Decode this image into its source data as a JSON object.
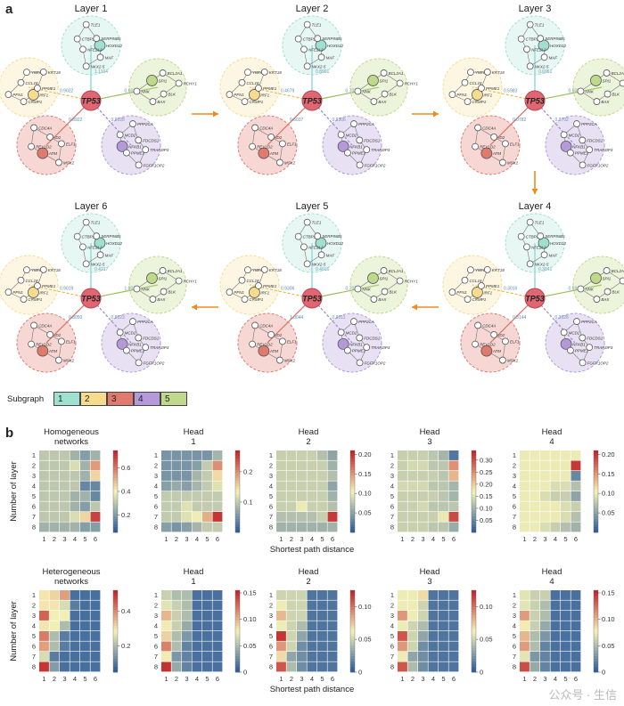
{
  "panel_a": {
    "letter": "a",
    "layers": [
      {
        "title": "Layer 1",
        "weights": [
          "1.1104",
          "0.9022",
          "0.8922",
          "0.9028",
          "0.6016"
        ]
      },
      {
        "title": "Layer 2",
        "weights": [
          "0.8901",
          "0.4679",
          "0.6037",
          "0.9306",
          "0.7021"
        ]
      },
      {
        "title": "Layer 3",
        "weights": [
          "0.6951",
          "0.5983",
          "0.0782",
          "0.3702",
          "0.5002"
        ]
      },
      {
        "title": "Layer 4",
        "weights": [
          "0.3841",
          "0.3016",
          "0.3144",
          "0.3026",
          "0.5917"
        ]
      },
      {
        "title": "Layer 5",
        "weights": [
          "0.4016",
          "0.9306",
          "1.0044",
          "0.9011",
          "0.7037"
        ]
      },
      {
        "title": "Layer 6",
        "weights": [
          "0.4217",
          "0.9019",
          "0.8050",
          "0.9023",
          "1.0014"
        ]
      }
    ],
    "hub": "TP53",
    "genes": {
      "s1": [
        "HOXD12",
        "MAF",
        "NKX2-5",
        "NFE2L2",
        "CTBP2",
        "TLE1",
        "SERPINB5"
      ],
      "s2": [
        "IRF1",
        "CRMP1",
        "PFN1",
        "CCL18",
        "YWHAQ",
        "KRT18",
        "PPME1"
      ],
      "s3": [
        "ATM",
        "REV1D2",
        "CDC4A",
        "ID2",
        "ELF1",
        "MSX2"
      ],
      "s4": [
        "NFKB1",
        "MCD2",
        "PPP2CA",
        "FDCDS1",
        "TRAF3IP3",
        "FGFR1OP2",
        "PPME1"
      ],
      "s5": [
        "SPI1",
        "BCL2A1",
        "RCHY1",
        "BLK",
        "BAX",
        "NNK"
      ]
    },
    "subgraph_legend": {
      "label": "Subgraph",
      "items": [
        "1",
        "2",
        "3",
        "4",
        "5"
      ],
      "colors": [
        "#9fe0d0",
        "#f7dc8f",
        "#e07a6f",
        "#b49ad8",
        "#bfd98a"
      ]
    }
  },
  "panel_b": {
    "letter": "b",
    "ylabel": "Number of layer",
    "xlabel": "Shortest path distance",
    "colors": {
      "low": "#2f5d9a",
      "mid": "#f6f2b6",
      "high": "#c0262b"
    },
    "charts": [
      {
        "title": "Homogeneous networks",
        "cbar": [
          "0.6",
          "0.4",
          "0.2"
        ],
        "cbar_vals": [
          0.6,
          0.4,
          0.2
        ],
        "vmin": 0.05,
        "vmax": 0.75
      },
      {
        "title": "Head 1",
        "cbar": [
          "0.2",
          "0.1"
        ],
        "cbar_vals": [
          0.2,
          0.1
        ],
        "vmin": 0.0,
        "vmax": 0.27
      },
      {
        "title": "Head 2",
        "cbar": [
          "0.20",
          "0.15",
          "0.10",
          "0.05"
        ],
        "cbar_vals": [
          0.2,
          0.15,
          0.1,
          0.05
        ],
        "vmin": 0.0,
        "vmax": 0.21
      },
      {
        "title": "Head 3",
        "cbar": [
          "0.30",
          "0.25",
          "0.20",
          "0.15",
          "0.10",
          "0.05"
        ],
        "cbar_vals": [
          0.3,
          0.25,
          0.2,
          0.15,
          0.1,
          0.05
        ],
        "vmin": 0.0,
        "vmax": 0.34
      },
      {
        "title": "Head 4",
        "cbar": [
          "0.20",
          "0.15",
          "0.10",
          "0.05"
        ],
        "cbar_vals": [
          0.2,
          0.15,
          0.1,
          0.05
        ],
        "vmin": 0.0,
        "vmax": 0.21
      },
      {
        "title": "Heterogeneous networks",
        "cbar": [
          "0.4",
          "0.2"
        ],
        "cbar_vals": [
          0.4,
          0.2
        ],
        "vmin": 0.05,
        "vmax": 0.52
      },
      {
        "title": "Head 1",
        "cbar": [
          "0.15",
          "0.10",
          "0.05",
          "0"
        ],
        "cbar_vals": [
          0.15,
          0.1,
          0.05,
          0
        ],
        "vmin": 0.0,
        "vmax": 0.155
      },
      {
        "title": "Head 2",
        "cbar": [
          "0.10",
          "0.05",
          "0"
        ],
        "cbar_vals": [
          0.1,
          0.05,
          0
        ],
        "vmin": 0.0,
        "vmax": 0.125
      },
      {
        "title": "Head 3",
        "cbar": [
          "0.10",
          "0.05",
          "0"
        ],
        "cbar_vals": [
          0.1,
          0.05,
          0
        ],
        "vmin": 0.0,
        "vmax": 0.125
      },
      {
        "title": "Head 4",
        "cbar": [
          "0.15",
          "0.10",
          "0.05",
          "0"
        ],
        "cbar_vals": [
          0.15,
          0.1,
          0.05,
          0
        ],
        "vmin": 0.0,
        "vmax": 0.155
      }
    ]
  },
  "chart_data": [
    {
      "type": "heatmap",
      "title": "Homogeneous networks",
      "x": [
        1,
        2,
        3,
        4,
        5,
        6
      ],
      "y": [
        1,
        2,
        3,
        4,
        5,
        6,
        7,
        8
      ],
      "values": [
        [
          0.3,
          0.3,
          0.3,
          0.25,
          0.2,
          0.25
        ],
        [
          0.3,
          0.3,
          0.3,
          0.35,
          0.25,
          0.55
        ],
        [
          0.3,
          0.3,
          0.3,
          0.3,
          0.25,
          0.45
        ],
        [
          0.3,
          0.3,
          0.3,
          0.3,
          0.15,
          0.15
        ],
        [
          0.3,
          0.3,
          0.3,
          0.25,
          0.25,
          0.15
        ],
        [
          0.3,
          0.3,
          0.3,
          0.25,
          0.2,
          0.3
        ],
        [
          0.3,
          0.3,
          0.3,
          0.35,
          0.45,
          0.7
        ],
        [
          0.25,
          0.25,
          0.25,
          0.25,
          0.2,
          0.2
        ]
      ]
    },
    {
      "type": "heatmap",
      "title": "Head 1",
      "x": [
        1,
        2,
        3,
        4,
        5,
        6
      ],
      "y": [
        1,
        2,
        3,
        4,
        5,
        6,
        7,
        8
      ],
      "values": [
        [
          0.05,
          0.05,
          0.05,
          0.05,
          0.05,
          0.08
        ],
        [
          0.05,
          0.05,
          0.05,
          0.06,
          0.1,
          0.2
        ],
        [
          0.05,
          0.05,
          0.05,
          0.08,
          0.1,
          0.15
        ],
        [
          0.06,
          0.07,
          0.06,
          0.08,
          0.1,
          0.12
        ],
        [
          0.1,
          0.1,
          0.1,
          0.1,
          0.1,
          0.1
        ],
        [
          0.1,
          0.1,
          0.12,
          0.1,
          0.1,
          0.1
        ],
        [
          0.1,
          0.1,
          0.12,
          0.13,
          0.18,
          0.26
        ],
        [
          0.06,
          0.05,
          0.06,
          0.08,
          0.1,
          0.1
        ]
      ]
    },
    {
      "type": "heatmap",
      "title": "Head 2",
      "x": [
        1,
        2,
        3,
        4,
        5,
        6
      ],
      "y": [
        1,
        2,
        3,
        4,
        5,
        6,
        7,
        8
      ],
      "values": [
        [
          0.08,
          0.08,
          0.08,
          0.08,
          0.07,
          0.05
        ],
        [
          0.08,
          0.08,
          0.08,
          0.08,
          0.08,
          0.06
        ],
        [
          0.08,
          0.08,
          0.08,
          0.08,
          0.08,
          0.07
        ],
        [
          0.08,
          0.08,
          0.08,
          0.08,
          0.08,
          0.05
        ],
        [
          0.08,
          0.08,
          0.08,
          0.08,
          0.08,
          0.06
        ],
        [
          0.08,
          0.08,
          0.1,
          0.08,
          0.08,
          0.07
        ],
        [
          0.07,
          0.07,
          0.07,
          0.07,
          0.08,
          0.2
        ],
        [
          0.06,
          0.06,
          0.06,
          0.06,
          0.06,
          0.06
        ]
      ]
    },
    {
      "type": "heatmap",
      "title": "Head 3",
      "x": [
        1,
        2,
        3,
        4,
        5,
        6
      ],
      "y": [
        1,
        2,
        3,
        4,
        5,
        6,
        7,
        8
      ],
      "values": [
        [
          0.13,
          0.13,
          0.13,
          0.12,
          0.1,
          0.03
        ],
        [
          0.13,
          0.14,
          0.14,
          0.12,
          0.12,
          0.25
        ],
        [
          0.13,
          0.13,
          0.13,
          0.13,
          0.12,
          0.22
        ],
        [
          0.14,
          0.14,
          0.14,
          0.12,
          0.12,
          0.1
        ],
        [
          0.13,
          0.13,
          0.13,
          0.13,
          0.12,
          0.1
        ],
        [
          0.13,
          0.13,
          0.14,
          0.12,
          0.12,
          0.12
        ],
        [
          0.13,
          0.13,
          0.13,
          0.13,
          0.16,
          0.31
        ],
        [
          0.13,
          0.13,
          0.13,
          0.12,
          0.12,
          0.09
        ]
      ]
    },
    {
      "type": "heatmap",
      "title": "Head 4",
      "x": [
        1,
        2,
        3,
        4,
        5,
        6
      ],
      "y": [
        1,
        2,
        3,
        4,
        5,
        6,
        7,
        8
      ],
      "values": [
        [
          0.1,
          0.1,
          0.1,
          0.1,
          0.1,
          0.1
        ],
        [
          0.1,
          0.1,
          0.1,
          0.1,
          0.1,
          0.2
        ],
        [
          0.1,
          0.1,
          0.1,
          0.1,
          0.1,
          0.03
        ],
        [
          0.1,
          0.1,
          0.1,
          0.09,
          0.09,
          0.07
        ],
        [
          0.1,
          0.1,
          0.09,
          0.08,
          0.08,
          0.05
        ],
        [
          0.1,
          0.1,
          0.1,
          0.1,
          0.09,
          0.08
        ],
        [
          0.1,
          0.1,
          0.1,
          0.1,
          0.09,
          0.07
        ],
        [
          0.1,
          0.1,
          0.09,
          0.08,
          0.07,
          0.06
        ]
      ]
    },
    {
      "type": "heatmap",
      "title": "Heterogeneous networks",
      "x": [
        1,
        2,
        3,
        4,
        5,
        6
      ],
      "y": [
        1,
        2,
        3,
        4,
        5,
        6,
        7,
        8
      ],
      "values": [
        [
          0.3,
          0.32,
          0.38,
          0.08,
          0.08,
          0.08
        ],
        [
          0.3,
          0.3,
          0.25,
          0.1,
          0.08,
          0.08
        ],
        [
          0.45,
          0.28,
          0.28,
          0.08,
          0.08,
          0.08
        ],
        [
          0.3,
          0.28,
          0.2,
          0.08,
          0.08,
          0.08
        ],
        [
          0.42,
          0.2,
          0.1,
          0.08,
          0.08,
          0.08
        ],
        [
          0.38,
          0.2,
          0.1,
          0.08,
          0.08,
          0.08
        ],
        [
          0.25,
          0.1,
          0.08,
          0.08,
          0.08,
          0.08
        ],
        [
          0.5,
          0.15,
          0.08,
          0.08,
          0.08,
          0.08
        ]
      ]
    },
    {
      "type": "heatmap",
      "title": "Head 1",
      "x": [
        1,
        2,
        3,
        4,
        5,
        6
      ],
      "y": [
        1,
        2,
        3,
        4,
        5,
        6,
        7,
        8
      ],
      "values": [
        [
          0.06,
          0.05,
          0.05,
          0.01,
          0.01,
          0.01
        ],
        [
          0.07,
          0.06,
          0.05,
          0.01,
          0.01,
          0.01
        ],
        [
          0.1,
          0.06,
          0.05,
          0.01,
          0.01,
          0.01
        ],
        [
          0.08,
          0.06,
          0.04,
          0.01,
          0.01,
          0.01
        ],
        [
          0.09,
          0.05,
          0.03,
          0.01,
          0.01,
          0.01
        ],
        [
          0.12,
          0.05,
          0.02,
          0.01,
          0.01,
          0.01
        ],
        [
          0.08,
          0.03,
          0.02,
          0.01,
          0.01,
          0.01
        ],
        [
          0.15,
          0.04,
          0.02,
          0.01,
          0.01,
          0.01
        ]
      ]
    },
    {
      "type": "heatmap",
      "title": "Head 2",
      "x": [
        1,
        2,
        3,
        4,
        5,
        6
      ],
      "y": [
        1,
        2,
        3,
        4,
        5,
        6,
        7,
        8
      ],
      "values": [
        [
          0.05,
          0.05,
          0.05,
          0.01,
          0.01,
          0.01
        ],
        [
          0.06,
          0.05,
          0.05,
          0.01,
          0.01,
          0.01
        ],
        [
          0.08,
          0.05,
          0.05,
          0.01,
          0.01,
          0.01
        ],
        [
          0.06,
          0.05,
          0.04,
          0.01,
          0.01,
          0.01
        ],
        [
          0.12,
          0.05,
          0.03,
          0.01,
          0.01,
          0.01
        ],
        [
          0.09,
          0.05,
          0.02,
          0.01,
          0.01,
          0.01
        ],
        [
          0.07,
          0.03,
          0.02,
          0.01,
          0.01,
          0.01
        ],
        [
          0.11,
          0.04,
          0.02,
          0.01,
          0.01,
          0.01
        ]
      ]
    },
    {
      "type": "heatmap",
      "title": "Head 3",
      "x": [
        1,
        2,
        3,
        4,
        5,
        6
      ],
      "y": [
        1,
        2,
        3,
        4,
        5,
        6,
        7,
        8
      ],
      "values": [
        [
          0.06,
          0.06,
          0.07,
          0.01,
          0.01,
          0.01
        ],
        [
          0.06,
          0.06,
          0.05,
          0.01,
          0.01,
          0.01
        ],
        [
          0.09,
          0.06,
          0.05,
          0.01,
          0.01,
          0.01
        ],
        [
          0.06,
          0.05,
          0.04,
          0.01,
          0.01,
          0.01
        ],
        [
          0.11,
          0.05,
          0.03,
          0.01,
          0.01,
          0.01
        ],
        [
          0.09,
          0.05,
          0.02,
          0.01,
          0.01,
          0.01
        ],
        [
          0.06,
          0.03,
          0.02,
          0.01,
          0.01,
          0.01
        ],
        [
          0.11,
          0.04,
          0.02,
          0.01,
          0.01,
          0.01
        ]
      ]
    },
    {
      "type": "heatmap",
      "title": "Head 4",
      "x": [
        1,
        2,
        3,
        4,
        5,
        6
      ],
      "y": [
        1,
        2,
        3,
        4,
        5,
        6,
        7,
        8
      ],
      "values": [
        [
          0.07,
          0.06,
          0.06,
          0.01,
          0.01,
          0.01
        ],
        [
          0.07,
          0.06,
          0.05,
          0.01,
          0.01,
          0.01
        ],
        [
          0.11,
          0.06,
          0.05,
          0.01,
          0.01,
          0.01
        ],
        [
          0.08,
          0.06,
          0.04,
          0.01,
          0.01,
          0.01
        ],
        [
          0.1,
          0.05,
          0.03,
          0.01,
          0.01,
          0.01
        ],
        [
          0.11,
          0.05,
          0.02,
          0.01,
          0.01,
          0.01
        ],
        [
          0.07,
          0.03,
          0.02,
          0.01,
          0.01,
          0.01
        ],
        [
          0.14,
          0.04,
          0.02,
          0.01,
          0.01,
          0.01
        ]
      ]
    }
  ],
  "watermark": "公众号 · 生信"
}
